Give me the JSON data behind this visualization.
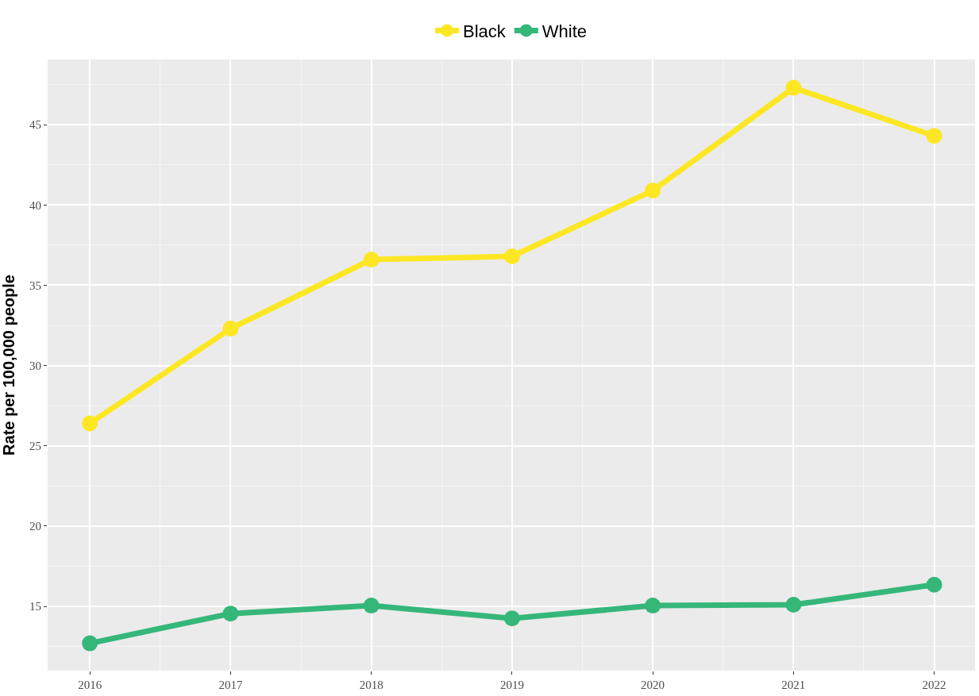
{
  "chart_data": {
    "type": "line",
    "ylabel": "Rate per 100,000 people",
    "x": [
      2016,
      2017,
      2018,
      2019,
      2020,
      2021,
      2022
    ],
    "series": [
      {
        "name": "Black",
        "color": "#fde725",
        "values": [
          26.4,
          32.3,
          36.6,
          36.8,
          40.9,
          47.3,
          44.3
        ]
      },
      {
        "name": "White",
        "color": "#35b779",
        "values": [
          12.7,
          14.55,
          15.05,
          14.25,
          15.05,
          15.1,
          16.35
        ]
      }
    ],
    "xlim": [
      2015.7,
      2022.29
    ],
    "xticks": [
      2016,
      2017,
      2018,
      2019,
      2020,
      2021,
      2022
    ],
    "ylim": [
      11.0,
      49.06
    ],
    "yticks": [
      15,
      20,
      25,
      30,
      35,
      40,
      45
    ],
    "grid": true,
    "legend": "top",
    "marker": "circle",
    "line_style": "solid"
  }
}
